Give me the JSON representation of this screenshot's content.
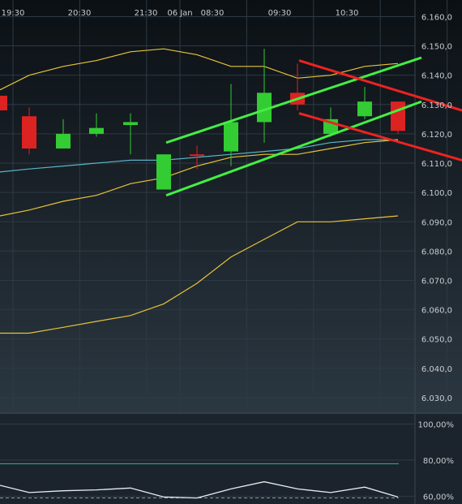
{
  "chart_data": [
    {
      "type": "candlestick",
      "title": "",
      "x_tick_labels": [
        "19:30",
        "20:30",
        "21:30",
        "06 Jan",
        "08:30",
        "09:30",
        "10:30"
      ],
      "y_tick_labels": [
        "6.160,0",
        "6.150,0",
        "6.140,0",
        "6.130,0",
        "6.120,0",
        "6.110,0",
        "6.100,0",
        "6.090,0",
        "6.080,0",
        "6.070,0",
        "6.060,0",
        "6.050,0",
        "6.040,0",
        "6.030,0"
      ],
      "ylim": [
        6025,
        6164
      ],
      "candles": [
        {
          "open": 6133,
          "high": 6133,
          "low": 6128,
          "close": 6128,
          "color": "red"
        },
        {
          "open": 6126,
          "high": 6129,
          "low": 6113,
          "close": 6115,
          "color": "red"
        },
        {
          "open": 6115,
          "high": 6125,
          "low": 6115,
          "close": 6120,
          "color": "green"
        },
        {
          "open": 6120,
          "high": 6127,
          "low": 6119,
          "close": 6122,
          "color": "green"
        },
        {
          "open": 6123,
          "high": 6127,
          "low": 6113,
          "close": 6124,
          "color": "green"
        },
        {
          "open": 6101,
          "high": 6113,
          "low": 6101,
          "close": 6113,
          "color": "green"
        },
        {
          "open": 6113,
          "high": 6116,
          "low": 6108,
          "close": 6113,
          "color": "red"
        },
        {
          "open": 6114,
          "high": 6137,
          "low": 6109,
          "close": 6124,
          "color": "green"
        },
        {
          "open": 6124,
          "high": 6149,
          "low": 6117,
          "close": 6134,
          "color": "green"
        },
        {
          "open": 6134,
          "high": 6144,
          "low": 6128,
          "close": 6130,
          "color": "red"
        },
        {
          "open": 6120,
          "high": 6129,
          "low": 6119,
          "close": 6125,
          "color": "green"
        },
        {
          "open": 6126,
          "high": 6136,
          "low": 6125,
          "close": 6131,
          "color": "green"
        },
        {
          "open": 6131,
          "high": 6131,
          "low": 6120,
          "close": 6121,
          "color": "red"
        }
      ],
      "bollinger_upper": [
        6135,
        6140,
        6143,
        6145,
        6148,
        6149,
        6147,
        6143,
        6143,
        6139,
        6140,
        6143,
        6144
      ],
      "bollinger_middle": [
        6107,
        6108,
        6109,
        6110,
        6111,
        6111,
        6112,
        6113,
        6114,
        6115,
        6117,
        6118,
        6118
      ],
      "bollinger_lower": [
        6092,
        6094,
        6097,
        6099,
        6103,
        6105,
        6109,
        6112,
        6113,
        6113,
        6115,
        6117,
        6118
      ],
      "lower_band_bottom": [
        6052,
        6052,
        6054,
        6056,
        6058,
        6062,
        6069,
        6078,
        6084,
        6090,
        6090,
        6091,
        6092
      ],
      "trendlines": [
        {
          "color": "green",
          "from": [
            5,
            6117
          ],
          "to": [
            13,
            6146
          ]
        },
        {
          "color": "green",
          "from": [
            5,
            6099
          ],
          "to": [
            13,
            6131
          ]
        },
        {
          "color": "red",
          "from": [
            9,
            6145
          ],
          "to": [
            14,
            6128
          ]
        },
        {
          "color": "red",
          "from": [
            9,
            6127
          ],
          "to": [
            14,
            6111
          ]
        }
      ],
      "colors": {
        "up": "#33cc33",
        "down": "#dd2222",
        "band": "#e8c23a",
        "middle": "#5ab4c8",
        "trend_up": "#44ee44",
        "trend_down": "#ee2222",
        "grid": "#2e3a44",
        "label": "#c8ccd0"
      }
    },
    {
      "type": "line",
      "title": "",
      "y_tick_labels": [
        "100,00%",
        "80,00%",
        "60,00%"
      ],
      "ylim": [
        57,
        102
      ],
      "values": [
        66,
        62,
        63,
        63.5,
        64.5,
        59.5,
        59,
        64,
        68,
        64,
        62,
        65,
        59.5
      ],
      "reference_level": 78,
      "colors": {
        "line": "#e8ecf0",
        "reference": "#2ab3a8"
      }
    }
  ]
}
